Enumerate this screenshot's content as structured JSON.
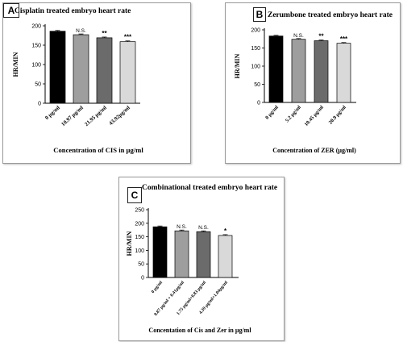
{
  "chart_data": [
    {
      "panel": "A",
      "type": "bar",
      "title": "Cisplatin treated embryo heart rate",
      "xlabel": "Concentration of CIS in µg/ml",
      "ylabel": "HR/MIN",
      "ylim": [
        0,
        200
      ],
      "yticks": [
        0,
        50,
        100,
        150,
        200
      ],
      "categories": [
        "0 µg/ml",
        "10.97 µg/ml",
        "21.95 µg/ml",
        "43.92µg/ml"
      ],
      "values": [
        186,
        177,
        169,
        159
      ],
      "errors": [
        2,
        2,
        2,
        2
      ],
      "significance": [
        "",
        "N.S.",
        "**",
        "***"
      ],
      "colors": [
        "#000000",
        "#9e9e9e",
        "#6b6b6b",
        "#d9d9d9"
      ]
    },
    {
      "panel": "B",
      "type": "bar",
      "title": "Zerumbone treated embryo heart rate",
      "xlabel": "Concentration of ZER (µg/ml)",
      "ylabel": "HR/MIN",
      "ylim": [
        0,
        200
      ],
      "yticks": [
        0,
        50,
        100,
        150,
        200
      ],
      "categories": [
        "0 µg/ml",
        "5.2 µg/ml",
        "10.45 µg/ml",
        "20.9 µg/ml"
      ],
      "values": [
        183,
        174,
        170,
        163
      ],
      "errors": [
        2,
        2,
        2,
        2
      ],
      "significance": [
        "",
        "N.S.",
        "**",
        "***"
      ],
      "colors": [
        "#000000",
        "#9e9e9e",
        "#6b6b6b",
        "#d9d9d9"
      ]
    },
    {
      "panel": "C",
      "type": "bar",
      "title": "Combinational treated embryo heart rate",
      "xlabel": "Concentation of Cis and Zer in µg/ml",
      "ylabel": "HR/MIN",
      "ylim": [
        0,
        250
      ],
      "yticks": [
        0,
        50,
        100,
        150,
        200,
        250
      ],
      "categories": [
        "0 µg/ml",
        "0.87 µg/ml + 0.41µg/ml",
        "1.75 µg/ml+0.83 µg/ml",
        "4.39 µg/ml+1.04µg/ml"
      ],
      "values": [
        187,
        172,
        169,
        155
      ],
      "errors": [
        3,
        3,
        3,
        3
      ],
      "significance": [
        "",
        "N.S.",
        "N.S.",
        "*"
      ],
      "colors": [
        "#000000",
        "#9e9e9e",
        "#6b6b6b",
        "#d9d9d9"
      ]
    }
  ]
}
